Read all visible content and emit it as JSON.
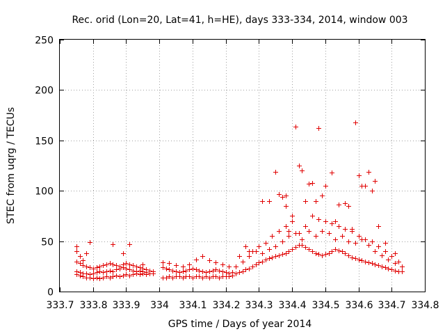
{
  "chart_data": {
    "type": "scatter",
    "title": "Rec. orid (Lon=20, Lat=41, h=HE), days 333-334, 2014, window 003",
    "xlabel": "GPS time / Days of year 2014",
    "ylabel": "STEC from uqrg / TECUs",
    "xlim": [
      333.7,
      334.8
    ],
    "ylim": [
      0,
      250
    ],
    "xticks": [
      333.7,
      333.8,
      333.9,
      334,
      334.1,
      334.2,
      334.3,
      334.4,
      334.5,
      334.6,
      334.7,
      334.8
    ],
    "xtick_labels": [
      "333.7",
      "333.8",
      "333.9",
      "334",
      "334.1",
      "334.2",
      "334.3",
      "334.4",
      "334.5",
      "334.6",
      "334.7",
      "334.8"
    ],
    "yticks": [
      0,
      50,
      100,
      150,
      200,
      250
    ],
    "ytick_labels": [
      "0",
      "50",
      "100",
      "150",
      "200",
      "250"
    ],
    "grid": true,
    "marker": "plus",
    "color": "#e00000",
    "series": [
      {
        "x": [
          333.75,
          333.76,
          333.77,
          333.78,
          333.79,
          333.8,
          333.81,
          333.82,
          333.83,
          333.84,
          333.85,
          333.86,
          333.87,
          333.88,
          333.89,
          333.9,
          333.91,
          333.92,
          333.93,
          333.94,
          333.95,
          333.96,
          333.97,
          333.98,
          333.75,
          333.76,
          333.77,
          333.78,
          333.79,
          333.8,
          333.81,
          333.82,
          333.83,
          333.84,
          333.85,
          333.86,
          333.87,
          333.88,
          333.89,
          333.9,
          333.91,
          333.92,
          333.93,
          333.94,
          333.95,
          333.96,
          333.97,
          333.98,
          333.75,
          333.76,
          333.77,
          333.78,
          333.79,
          333.8,
          333.81,
          333.82,
          333.83,
          333.84,
          333.85,
          333.86,
          333.87,
          333.88,
          333.89,
          333.9,
          333.91,
          333.92,
          333.93,
          333.94,
          333.95,
          333.96,
          333.97,
          333.98,
          333.75,
          333.75,
          333.76,
          333.77,
          333.78,
          333.79,
          333.86,
          333.89,
          333.91,
          333.95,
          334.01,
          334.02,
          334.03,
          334.04,
          334.05,
          334.06,
          334.07,
          334.08,
          334.09,
          334.1,
          334.11,
          334.12,
          334.13,
          334.14,
          334.15,
          334.16,
          334.17,
          334.18,
          334.19,
          334.2,
          334.21,
          334.22,
          334.01,
          334.02,
          334.03,
          334.04,
          334.05,
          334.06,
          334.07,
          334.08,
          334.09,
          334.1,
          334.11,
          334.12,
          334.13,
          334.14,
          334.15,
          334.16,
          334.17,
          334.18,
          334.19,
          334.2,
          334.21,
          334.22,
          334.01,
          334.03,
          334.05,
          334.07,
          334.09,
          334.11,
          334.13,
          334.15,
          334.17,
          334.19,
          334.21,
          334.23,
          334.24,
          334.25,
          334.26,
          334.27,
          334.28,
          334.29,
          334.3,
          334.31,
          334.32,
          334.33,
          334.34,
          334.35,
          334.36,
          334.37,
          334.38,
          334.39,
          334.4,
          334.41,
          334.42,
          334.43,
          334.44,
          334.45,
          334.46,
          334.47,
          334.48,
          334.49,
          334.5,
          334.51,
          334.52,
          334.53,
          334.54,
          334.55,
          334.56,
          334.57,
          334.58,
          334.59,
          334.6,
          334.61,
          334.62,
          334.63,
          334.64,
          334.65,
          334.66,
          334.67,
          334.68,
          334.69,
          334.7,
          334.71,
          334.72,
          334.73,
          334.23,
          334.25,
          334.27,
          334.29,
          334.31,
          334.33,
          334.35,
          334.37,
          334.39,
          334.41,
          334.43,
          334.45,
          334.47,
          334.49,
          334.51,
          334.53,
          334.55,
          334.57,
          334.59,
          334.61,
          334.63,
          334.65,
          334.67,
          334.69,
          334.71,
          334.73,
          334.24,
          334.26,
          334.28,
          334.3,
          334.32,
          334.34,
          334.36,
          334.38,
          334.4,
          334.42,
          334.44,
          334.46,
          334.48,
          334.5,
          334.52,
          334.54,
          334.56,
          334.58,
          334.6,
          334.62,
          334.64,
          334.66,
          334.68,
          334.7,
          334.72,
          334.35,
          334.36,
          334.38,
          334.4,
          334.41,
          334.42,
          334.45,
          334.47,
          334.48,
          334.49,
          334.52,
          334.56,
          334.59,
          334.6,
          334.61,
          334.63,
          334.64,
          334.65,
          334.68,
          334.71,
          334.62,
          334.54,
          334.43,
          334.33,
          334.27,
          334.31,
          334.39,
          334.46,
          334.5,
          334.57,
          334.66,
          334.53,
          334.44,
          334.38,
          334.37,
          334.58
        ],
        "y": [
          17,
          16,
          15,
          14,
          14,
          13,
          14,
          13,
          14,
          15,
          14,
          15,
          16,
          15,
          16,
          17,
          16,
          17,
          18,
          17,
          18,
          17,
          18,
          18,
          20,
          19,
          18,
          18,
          17,
          18,
          19,
          20,
          19,
          20,
          21,
          20,
          22,
          23,
          24,
          23,
          22,
          21,
          20,
          21,
          20,
          19,
          18,
          18,
          30,
          28,
          26,
          25,
          24,
          23,
          24,
          25,
          26,
          27,
          28,
          27,
          26,
          25,
          27,
          28,
          27,
          26,
          25,
          24,
          23,
          22,
          21,
          20,
          45,
          40,
          35,
          31,
          38,
          49,
          47,
          38,
          47,
          27,
          14,
          14,
          15,
          14,
          15,
          15,
          14,
          15,
          15,
          14,
          15,
          15,
          14,
          15,
          14,
          15,
          15,
          14,
          15,
          15,
          15,
          16,
          24,
          23,
          22,
          21,
          20,
          19,
          20,
          21,
          22,
          23,
          22,
          21,
          20,
          19,
          20,
          21,
          22,
          21,
          20,
          19,
          18,
          19,
          29,
          28,
          26,
          25,
          27,
          32,
          35,
          31,
          29,
          27,
          25,
          18,
          19,
          20,
          22,
          23,
          25,
          27,
          29,
          30,
          32,
          33,
          34,
          35,
          36,
          37,
          38,
          40,
          42,
          44,
          46,
          46,
          44,
          42,
          40,
          38,
          37,
          36,
          37,
          38,
          40,
          42,
          41,
          40,
          38,
          36,
          34,
          33,
          32,
          31,
          30,
          29,
          28,
          27,
          26,
          25,
          24,
          23,
          22,
          21,
          20,
          20,
          25,
          30,
          35,
          40,
          38,
          42,
          45,
          50,
          55,
          58,
          52,
          60,
          55,
          60,
          58,
          52,
          55,
          50,
          48,
          52,
          46,
          40,
          36,
          32,
          28,
          25,
          35,
          45,
          40,
          45,
          48,
          55,
          60,
          65,
          70,
          58,
          65,
          75,
          72,
          70,
          68,
          65,
          62,
          60,
          55,
          52,
          50,
          45,
          40,
          35,
          30,
          119,
          97,
          85,
          75,
          164,
          125,
          107,
          90,
          162,
          95,
          118,
          88,
          168,
          115,
          105,
          119,
          100,
          110,
          48,
          38,
          105,
          86,
          120,
          90,
          40,
          90,
          60,
          108,
          105,
          85,
          65,
          70,
          90,
          95,
          94,
          62
        ]
      }
    ]
  }
}
